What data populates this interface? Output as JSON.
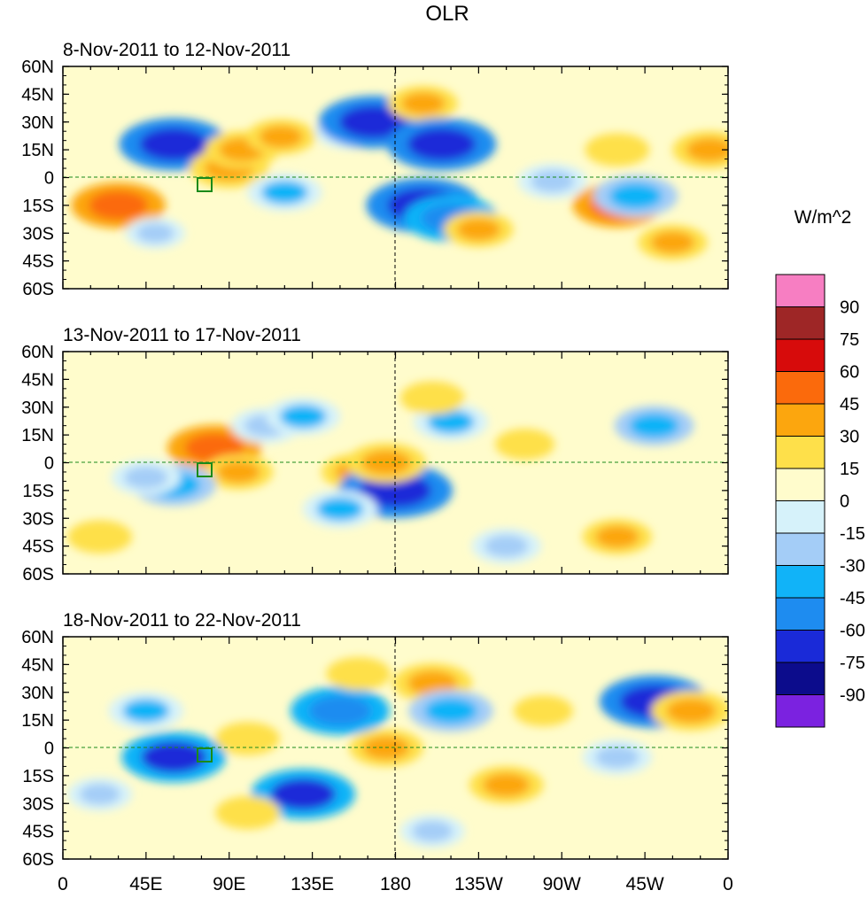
{
  "figure": {
    "title": "OLR",
    "colorbar_label": "W/m^2"
  },
  "colors": {
    "coast": "#1a8a1a",
    "axes": "#000000",
    "levels": [
      "#7b22e0",
      "#0c0c8c",
      "#1a2ad8",
      "#1e8cf0",
      "#11b3f8",
      "#a4cdf7",
      "#d6f2fa",
      "#fffccc",
      "#fee04a",
      "#fca60e",
      "#fb6a0c",
      "#d70b0b",
      "#9e2626",
      "#f77ec2"
    ]
  },
  "colorbar": {
    "tick_labels": [
      "-90",
      "-75",
      "-60",
      "-45",
      "-30",
      "-15",
      "0",
      "15",
      "30",
      "45",
      "60",
      "75",
      "90"
    ]
  },
  "map": {
    "lat_ticks": [
      "60N",
      "45N",
      "30N",
      "15N",
      "0",
      "15S",
      "30S",
      "45S",
      "60S"
    ],
    "lon_ticks": [
      "0",
      "45E",
      "90E",
      "135E",
      "180",
      "135W",
      "90W",
      "45W",
      "0"
    ],
    "panels": [
      {
        "title": "8-Nov-2011 to 12-Nov-2011",
        "anomalies": [
          {
            "lon": 30,
            "lat": -15,
            "value": 55
          },
          {
            "lon": 60,
            "lat": 18,
            "value": -70
          },
          {
            "lon": 90,
            "lat": 5,
            "value": 40
          },
          {
            "lon": 97,
            "lat": 15,
            "value": 35
          },
          {
            "lon": 118,
            "lat": 22,
            "value": 30
          },
          {
            "lon": 120,
            "lat": -8,
            "value": -35
          },
          {
            "lon": 155,
            "lat": 25,
            "value": -30
          },
          {
            "lon": 168,
            "lat": 30,
            "value": -70
          },
          {
            "lon": 195,
            "lat": -15,
            "value": -75
          },
          {
            "lon": 210,
            "lat": -22,
            "value": -55
          },
          {
            "lon": 225,
            "lat": -28,
            "value": 30
          },
          {
            "lon": 195,
            "lat": 40,
            "value": 30
          },
          {
            "lon": 205,
            "lat": 18,
            "value": -70
          },
          {
            "lon": 300,
            "lat": -15,
            "value": 50
          },
          {
            "lon": 310,
            "lat": -10,
            "value": -45
          },
          {
            "lon": 330,
            "lat": -35,
            "value": 30
          },
          {
            "lon": 350,
            "lat": 15,
            "value": 35
          },
          {
            "lon": 300,
            "lat": 15,
            "value": 25
          },
          {
            "lon": 265,
            "lat": -2,
            "value": -30
          },
          {
            "lon": 50,
            "lat": -30,
            "value": -20
          }
        ]
      },
      {
        "title": "13-Nov-2011 to 17-Nov-2011",
        "anomalies": [
          {
            "lon": 82,
            "lat": 8,
            "value": 55
          },
          {
            "lon": 95,
            "lat": -5,
            "value": 30
          },
          {
            "lon": 60,
            "lat": -12,
            "value": -45
          },
          {
            "lon": 45,
            "lat": -8,
            "value": -30
          },
          {
            "lon": 110,
            "lat": 20,
            "value": -30
          },
          {
            "lon": 130,
            "lat": 25,
            "value": -35
          },
          {
            "lon": 160,
            "lat": -5,
            "value": 35
          },
          {
            "lon": 180,
            "lat": -15,
            "value": -75
          },
          {
            "lon": 175,
            "lat": 0,
            "value": 40
          },
          {
            "lon": 150,
            "lat": -25,
            "value": -35
          },
          {
            "lon": 210,
            "lat": 22,
            "value": -35
          },
          {
            "lon": 320,
            "lat": 20,
            "value": -40
          },
          {
            "lon": 300,
            "lat": -40,
            "value": 30
          },
          {
            "lon": 240,
            "lat": -45,
            "value": -30
          },
          {
            "lon": 20,
            "lat": -40,
            "value": 25
          },
          {
            "lon": 200,
            "lat": 35,
            "value": 25
          },
          {
            "lon": 250,
            "lat": 10,
            "value": 20
          }
        ]
      },
      {
        "title": "18-Nov-2011 to 22-Nov-2011",
        "anomalies": [
          {
            "lon": 60,
            "lat": -5,
            "value": -65
          },
          {
            "lon": 45,
            "lat": 20,
            "value": -35
          },
          {
            "lon": 100,
            "lat": 5,
            "value": 25
          },
          {
            "lon": 130,
            "lat": -25,
            "value": -65
          },
          {
            "lon": 150,
            "lat": 20,
            "value": -60
          },
          {
            "lon": 160,
            "lat": 40,
            "value": 25
          },
          {
            "lon": 200,
            "lat": 35,
            "value": 40
          },
          {
            "lon": 210,
            "lat": 20,
            "value": -45
          },
          {
            "lon": 175,
            "lat": 0,
            "value": 35
          },
          {
            "lon": 240,
            "lat": -20,
            "value": 35
          },
          {
            "lon": 320,
            "lat": 25,
            "value": -70
          },
          {
            "lon": 340,
            "lat": 20,
            "value": 40
          },
          {
            "lon": 300,
            "lat": -5,
            "value": -30
          },
          {
            "lon": 20,
            "lat": -25,
            "value": -25
          },
          {
            "lon": 100,
            "lat": -35,
            "value": 25
          },
          {
            "lon": 200,
            "lat": -45,
            "value": -25
          },
          {
            "lon": 260,
            "lat": 20,
            "value": 20
          }
        ]
      }
    ]
  }
}
